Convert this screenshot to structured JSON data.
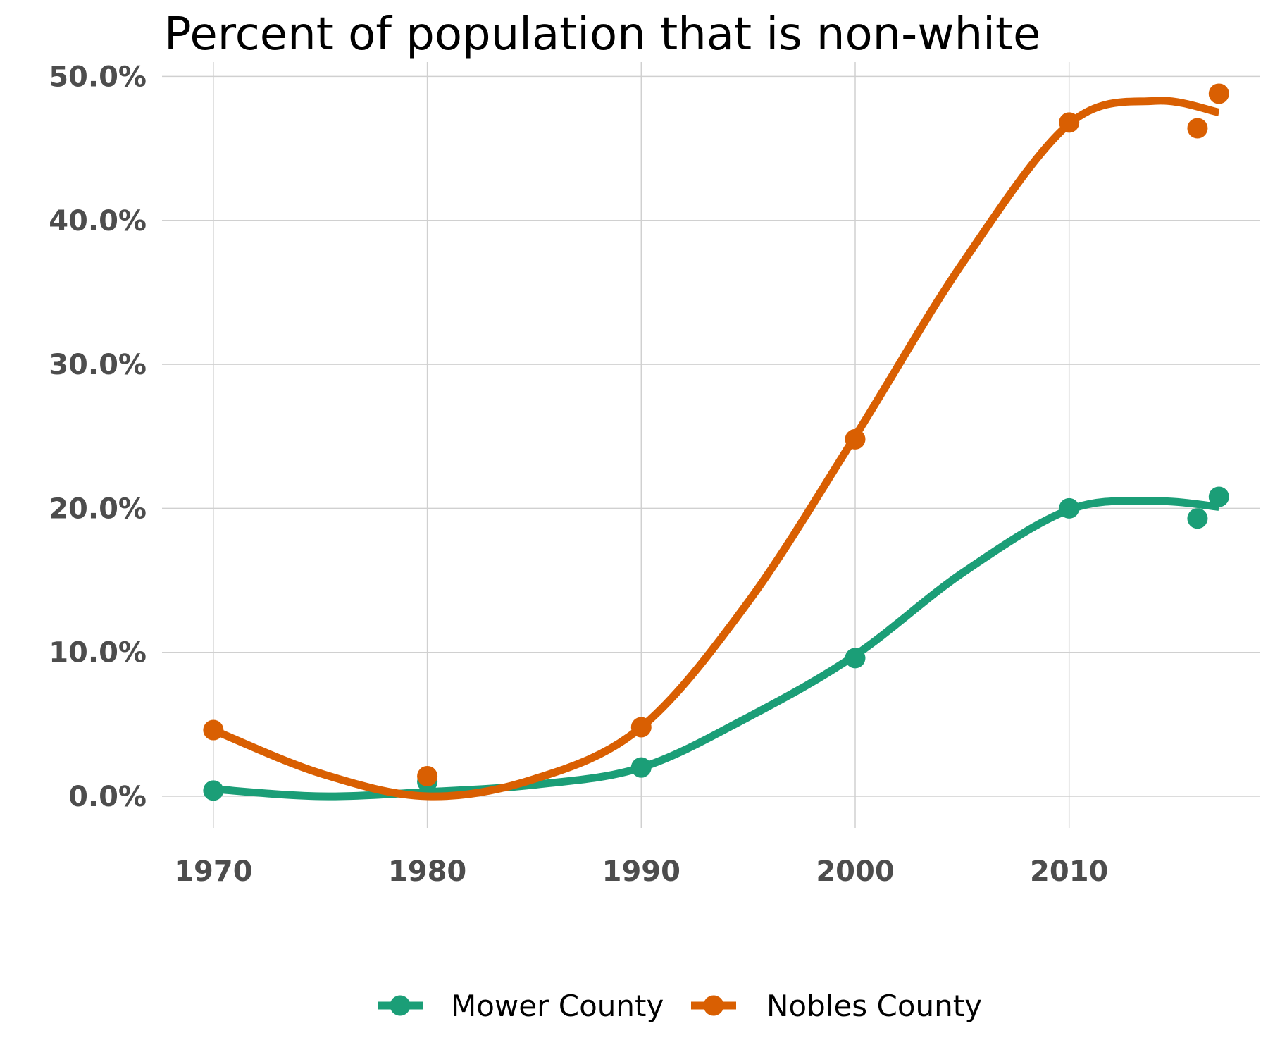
{
  "chart_data": {
    "type": "line",
    "title": "Percent of population that is non-white",
    "xlabel": "",
    "ylabel": "",
    "xlim": [
      1967.6,
      2018.9
    ],
    "ylim": [
      -2.2,
      51.0
    ],
    "x_ticks": [
      1970,
      1980,
      1990,
      2000,
      2010
    ],
    "x_tick_labels": [
      "1970",
      "1980",
      "1990",
      "2000",
      "2010"
    ],
    "y_ticks": [
      0,
      10,
      20,
      30,
      40,
      50
    ],
    "y_tick_labels": [
      "0.0%",
      "10.0%",
      "20.0%",
      "30.0%",
      "40.0%",
      "50.0%"
    ],
    "grid": true,
    "legend_position": "bottom",
    "series": [
      {
        "name": "Mower County",
        "color": "#1b9e77",
        "points": [
          {
            "x": 1970,
            "y": 0.4
          },
          {
            "x": 1980,
            "y": 1.0
          },
          {
            "x": 1990,
            "y": 2.0
          },
          {
            "x": 2000,
            "y": 9.6
          },
          {
            "x": 2010,
            "y": 20.0
          },
          {
            "x": 2016,
            "y": 19.3
          },
          {
            "x": 2017,
            "y": 20.8
          }
        ],
        "smooth": [
          {
            "x": 1970,
            "y": 0.5
          },
          {
            "x": 1975,
            "y": 0.0
          },
          {
            "x": 1980,
            "y": 0.3
          },
          {
            "x": 1985,
            "y": 0.8
          },
          {
            "x": 1990,
            "y": 2.0
          },
          {
            "x": 1995,
            "y": 5.5
          },
          {
            "x": 2000,
            "y": 9.8
          },
          {
            "x": 2005,
            "y": 15.5
          },
          {
            "x": 2010,
            "y": 19.9
          },
          {
            "x": 2014,
            "y": 20.5
          },
          {
            "x": 2017,
            "y": 20.1
          }
        ]
      },
      {
        "name": "Nobles County",
        "color": "#d95f02",
        "points": [
          {
            "x": 1970,
            "y": 4.6
          },
          {
            "x": 1980,
            "y": 1.4
          },
          {
            "x": 1990,
            "y": 4.8
          },
          {
            "x": 2000,
            "y": 24.8
          },
          {
            "x": 2010,
            "y": 46.8
          },
          {
            "x": 2016,
            "y": 46.4
          },
          {
            "x": 2017,
            "y": 48.8
          }
        ],
        "smooth": [
          {
            "x": 1970,
            "y": 4.6
          },
          {
            "x": 1975,
            "y": 1.6
          },
          {
            "x": 1980,
            "y": 0.0
          },
          {
            "x": 1985,
            "y": 1.2
          },
          {
            "x": 1990,
            "y": 4.8
          },
          {
            "x": 1995,
            "y": 13.5
          },
          {
            "x": 2000,
            "y": 25.0
          },
          {
            "x": 2005,
            "y": 37.0
          },
          {
            "x": 2010,
            "y": 46.7
          },
          {
            "x": 2014,
            "y": 48.3
          },
          {
            "x": 2017,
            "y": 47.5
          }
        ]
      }
    ]
  }
}
